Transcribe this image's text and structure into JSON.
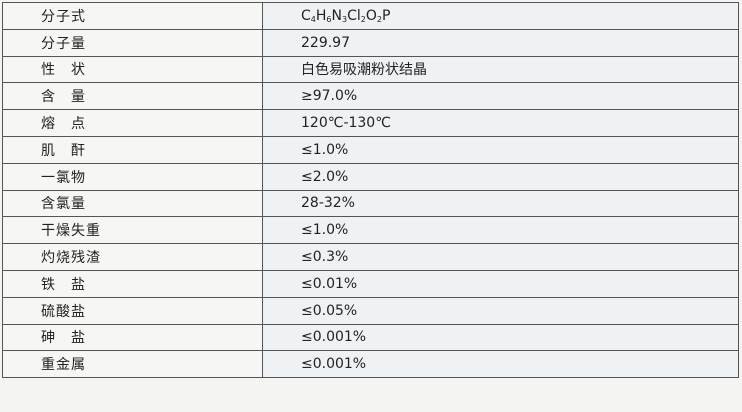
{
  "rows": [
    {
      "label": "分子式",
      "value": "C4H6N3Cl2O2P"
    },
    {
      "label": "分子量",
      "value": "229.97"
    },
    {
      "label": "性　状",
      "value": "白色易吸潮粉状结晶"
    },
    {
      "label": "含　量",
      "value": "≥97.0%"
    },
    {
      "label": "熔　点",
      "value": "120℃-130℃"
    },
    {
      "label": "肌　酐",
      "value": "≤1.0%"
    },
    {
      "label": "一氯物",
      "value": "≤2.0%"
    },
    {
      "label": "含氯量",
      "value": "28-32%"
    },
    {
      "label": "干燥失重",
      "value": "≤1.0%"
    },
    {
      "label": "灼烧残渣",
      "value": "≤0.3%"
    },
    {
      "label": "铁　盐",
      "value": "≤0.01%"
    },
    {
      "label": "硫酸盐",
      "value": "≤0.05%"
    },
    {
      "label": "砷　盐",
      "value": "≤0.001%"
    },
    {
      "label": "重金属",
      "value": "≤0.001%"
    }
  ]
}
